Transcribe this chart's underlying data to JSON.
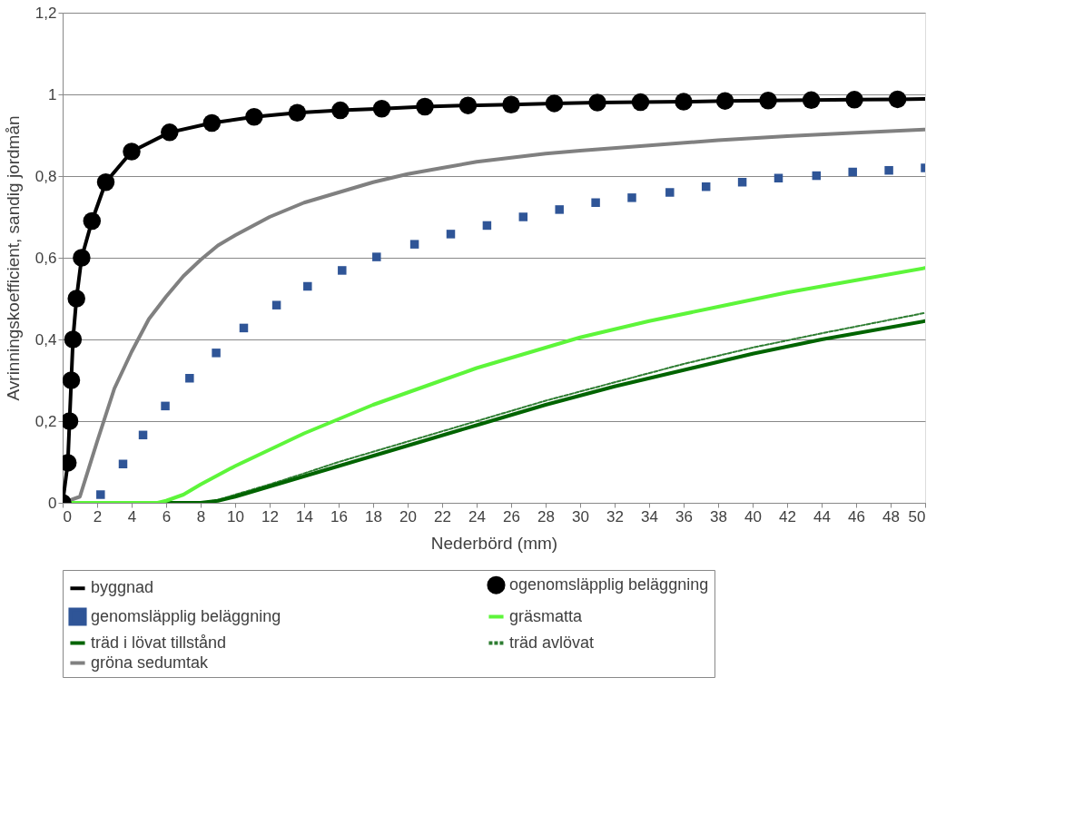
{
  "chart_data": {
    "type": "line",
    "xlabel": "Nederbörd (mm)",
    "ylabel": "Avrinningskoefficient, sandig jordmån",
    "xlim": [
      0,
      50
    ],
    "xticks": [
      0,
      2,
      4,
      6,
      8,
      10,
      12,
      14,
      16,
      18,
      20,
      22,
      24,
      26,
      28,
      30,
      32,
      34,
      36,
      38,
      40,
      42,
      44,
      46,
      48,
      50
    ],
    "ylim": [
      0,
      1.2
    ],
    "yticks": [
      0,
      {
        "value": 0.2,
        "label": "0,2"
      },
      {
        "value": 0.4,
        "label": "0,4"
      },
      {
        "value": 0.6,
        "label": "0,6"
      },
      {
        "value": 0.8,
        "label": "0,8"
      },
      1,
      {
        "value": 1.2,
        "label": "1,2"
      }
    ],
    "grid": "y",
    "legend": "bottom",
    "series": [
      {
        "name": "byggnad",
        "color": "#000000",
        "line_style": "solid",
        "x": [
          0,
          0.3,
          0.4,
          0.5,
          0.6,
          0.8,
          1.1,
          1.7,
          2.5,
          4.0,
          6.2,
          8.65,
          11.1,
          13.6,
          16.1,
          18.5,
          21,
          23.5,
          26,
          28.5,
          31,
          33.5,
          36,
          38.4,
          40.9,
          43.4,
          45.9,
          48.4,
          50
        ],
        "values": [
          0,
          0.098,
          0.2,
          0.3,
          0.4,
          0.5,
          0.6,
          0.69,
          0.785,
          0.86,
          0.907,
          0.93,
          0.945,
          0.955,
          0.961,
          0.965,
          0.97,
          0.973,
          0.975,
          0.978,
          0.98,
          0.981,
          0.982,
          0.984,
          0.985,
          0.986,
          0.987,
          0.988,
          0.989
        ]
      },
      {
        "name": "ogenomsläpplig beläggning",
        "color": "#000000",
        "type": "scatter",
        "marker": "circle",
        "x": [
          0,
          0.3,
          0.4,
          0.5,
          0.6,
          0.8,
          1.1,
          1.7,
          2.5,
          4.0,
          6.2,
          8.65,
          11.1,
          13.6,
          16.1,
          18.5,
          21,
          23.5,
          26,
          28.5,
          31,
          33.5,
          36,
          38.4,
          40.9,
          43.4,
          45.9,
          48.4
        ],
        "values": [
          0,
          0.098,
          0.2,
          0.3,
          0.4,
          0.5,
          0.6,
          0.69,
          0.785,
          0.86,
          0.907,
          0.93,
          0.945,
          0.955,
          0.961,
          0.965,
          0.97,
          0.973,
          0.975,
          0.978,
          0.98,
          0.981,
          0.982,
          0.984,
          0.985,
          0.986,
          0.987,
          0.988
        ]
      },
      {
        "name": "genomsläpplig beläggning",
        "color": "#2f5597",
        "type": "scatter",
        "marker": "square",
        "x": [
          2.2,
          3.5,
          4.66,
          5.95,
          7.36,
          8.9,
          10.5,
          12.4,
          14.2,
          16.2,
          18.2,
          20.4,
          22.5,
          24.6,
          26.7,
          28.8,
          30.9,
          33,
          35.2,
          37.3,
          39.4,
          41.5,
          43.7,
          45.8,
          47.9,
          50
        ],
        "values": [
          0.02,
          0.095,
          0.166,
          0.237,
          0.305,
          0.367,
          0.428,
          0.484,
          0.53,
          0.569,
          0.602,
          0.633,
          0.658,
          0.679,
          0.7,
          0.718,
          0.735,
          0.747,
          0.76,
          0.774,
          0.785,
          0.795,
          0.801,
          0.81,
          0.814,
          0.82
        ]
      },
      {
        "name": "gräsmatta",
        "color": "#5df53a",
        "line_style": "solid",
        "x": [
          0,
          5.5,
          6,
          7,
          8,
          10,
          12,
          14,
          16,
          18,
          20,
          22,
          24,
          26,
          28,
          30,
          34,
          38,
          42,
          46,
          50
        ],
        "values": [
          0,
          0,
          0.005,
          0.02,
          0.045,
          0.09,
          0.13,
          0.17,
          0.205,
          0.24,
          0.27,
          0.3,
          0.33,
          0.355,
          0.38,
          0.405,
          0.445,
          0.48,
          0.515,
          0.545,
          0.575
        ]
      },
      {
        "name": "träd i lövat tillstånd",
        "color": "#006400",
        "line_style": "solid",
        "x": [
          0,
          8,
          9,
          10,
          12,
          14,
          16,
          18,
          20,
          24,
          28,
          32,
          36,
          40,
          44,
          50
        ],
        "values": [
          0,
          0,
          0.005,
          0.015,
          0.04,
          0.065,
          0.09,
          0.115,
          0.14,
          0.19,
          0.24,
          0.285,
          0.325,
          0.365,
          0.4,
          0.445
        ]
      },
      {
        "name": "träd avlövat",
        "color": "#2e7d32",
        "line_style": "dashed",
        "x": [
          0,
          8,
          9,
          10,
          12,
          14,
          16,
          18,
          20,
          24,
          28,
          32,
          36,
          40,
          44,
          50
        ],
        "values": [
          0,
          0,
          0.007,
          0.02,
          0.045,
          0.072,
          0.1,
          0.125,
          0.15,
          0.2,
          0.25,
          0.295,
          0.34,
          0.38,
          0.415,
          0.465
        ]
      },
      {
        "name": "gröna sedumtak",
        "color": "#808080",
        "line_style": "solid",
        "x": [
          0,
          1,
          2,
          3,
          4,
          5,
          6,
          7,
          8,
          9,
          10,
          12,
          14,
          16,
          18,
          20,
          22,
          24,
          26,
          28,
          30,
          34,
          38,
          42,
          46,
          50
        ],
        "values": [
          0,
          0.015,
          0.15,
          0.28,
          0.37,
          0.45,
          0.505,
          0.555,
          0.595,
          0.63,
          0.655,
          0.7,
          0.735,
          0.76,
          0.785,
          0.805,
          0.82,
          0.835,
          0.845,
          0.855,
          0.862,
          0.875,
          0.888,
          0.898,
          0.906,
          0.914
        ]
      }
    ]
  }
}
